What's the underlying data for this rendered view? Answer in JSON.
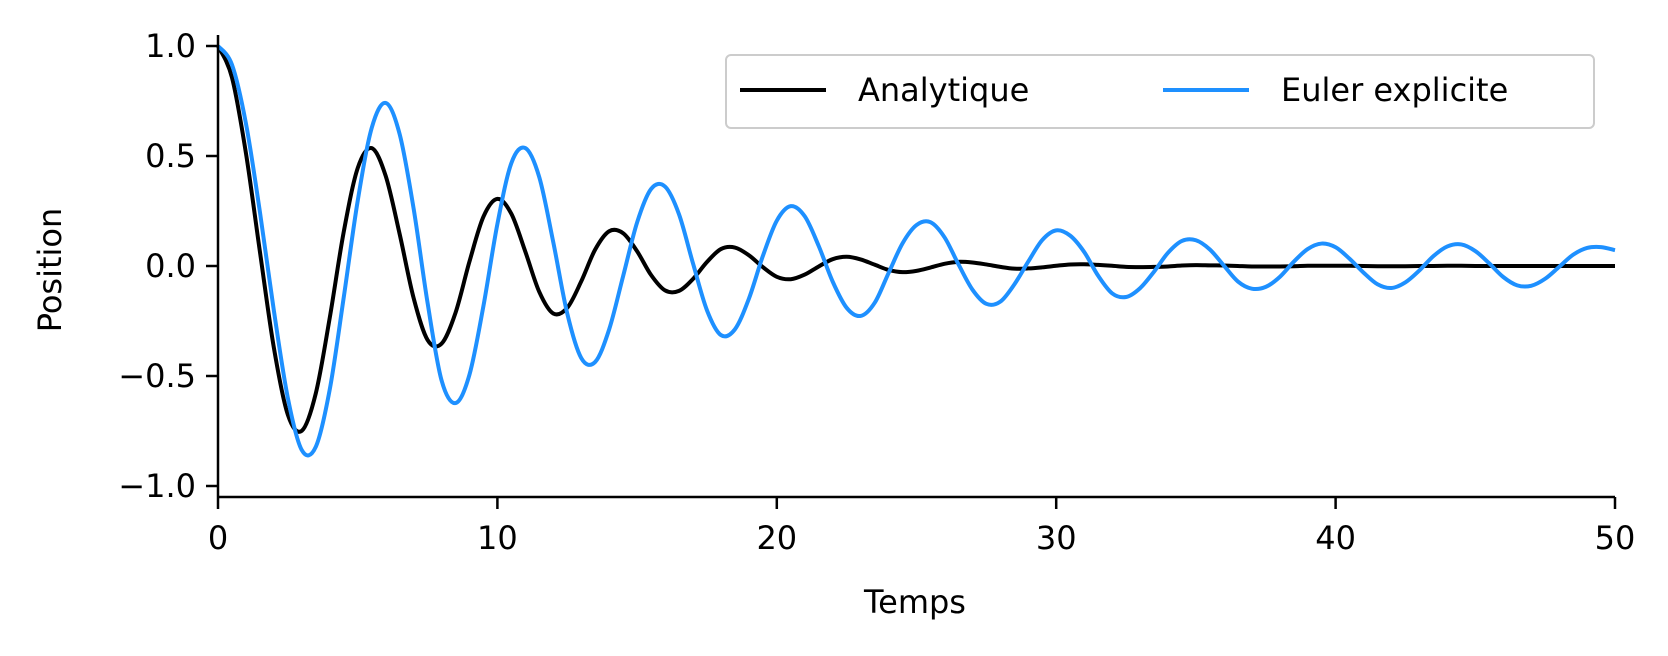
{
  "chart_data": {
    "type": "line",
    "title": "",
    "xlabel": "Temps",
    "ylabel": "Position",
    "xlim": [
      0,
      50
    ],
    "ylim": [
      -1.05,
      1.05
    ],
    "xticks": [
      0,
      10,
      20,
      30,
      40,
      50
    ],
    "xtick_labels": [
      "0",
      "10",
      "20",
      "30",
      "40",
      "50"
    ],
    "yticks": [
      -1.0,
      -0.5,
      0.0,
      0.5,
      1.0
    ],
    "ytick_labels": [
      "−1.0",
      "−0.5",
      "0.0",
      "0.5",
      "1.0"
    ],
    "grid": false,
    "legend_position": "top-right",
    "legend_columns": 2,
    "series": [
      {
        "name": "Analytique",
        "color": "#000000",
        "x": [
          0,
          0.5,
          1,
          1.5,
          2,
          2.5,
          3,
          3.5,
          4,
          4.5,
          5,
          5.5,
          6,
          6.5,
          7,
          7.5,
          8,
          8.5,
          9,
          9.5,
          10,
          10.5,
          11,
          11.5,
          12,
          12.5,
          13,
          13.5,
          14,
          14.5,
          15,
          15.5,
          16,
          16.5,
          17,
          17.5,
          18,
          18.5,
          19,
          19.5,
          20,
          20.5,
          21,
          21.5,
          22,
          22.5,
          23,
          23.5,
          24,
          24.5,
          25,
          25.5,
          26,
          26.5,
          27,
          27.5,
          28,
          28.5,
          29,
          29.5,
          30,
          30.5,
          31,
          31.5,
          32,
          32.5,
          33,
          33.5,
          34,
          34.5,
          35,
          35.5,
          36,
          36.5,
          37,
          37.5,
          38,
          38.5,
          39,
          39.5,
          40,
          40.5,
          41,
          41.5,
          42,
          42.5,
          43,
          43.5,
          44,
          44.5,
          45,
          45.5,
          46,
          46.5,
          47,
          47.5,
          48,
          48.5,
          49,
          49.5,
          50
        ],
        "y": [
          1.0,
          0.857,
          0.513,
          0.065,
          -0.372,
          -0.676,
          -0.749,
          -0.579,
          -0.235,
          0.155,
          0.445,
          0.536,
          0.41,
          0.146,
          -0.145,
          -0.336,
          -0.353,
          -0.213,
          0.02,
          0.224,
          0.305,
          0.237,
          0.065,
          -0.118,
          -0.216,
          -0.19,
          -0.07,
          0.075,
          0.158,
          0.149,
          0.067,
          -0.041,
          -0.111,
          -0.113,
          -0.059,
          0.018,
          0.077,
          0.084,
          0.049,
          -0.005,
          -0.049,
          -0.06,
          -0.039,
          -0.002,
          0.031,
          0.042,
          0.03,
          0.006,
          -0.018,
          -0.028,
          -0.022,
          -0.007,
          0.01,
          0.019,
          0.016,
          0.007,
          -0.004,
          -0.012,
          -0.011,
          -0.006,
          0.001,
          0.007,
          0.008,
          0.005,
          0.001,
          -0.004,
          -0.005,
          -0.004,
          -0.002,
          0.002,
          0.004,
          0.003,
          0.002,
          0.0,
          -0.002,
          -0.002,
          -0.002,
          -0.001,
          0.001,
          0.001,
          0.001,
          0.001,
          0.0,
          -0.001,
          -0.001,
          -0.001,
          0.0,
          0.0,
          0.001,
          0.001,
          0.0,
          0.0,
          0.0,
          0.0,
          0.0,
          0.0,
          0.0,
          0.0,
          0.0,
          0.0,
          0.0
        ]
      },
      {
        "name": "Euler explicite",
        "color": "#1E90FF",
        "x": [
          0,
          0.5,
          1,
          1.5,
          2,
          2.5,
          3,
          3.5,
          4,
          4.5,
          5,
          5.5,
          6,
          6.5,
          7,
          7.5,
          8,
          8.5,
          9,
          9.5,
          10,
          10.5,
          11,
          11.5,
          12,
          12.5,
          13,
          13.5,
          14,
          14.5,
          15,
          15.5,
          16,
          16.5,
          17,
          17.5,
          18,
          18.5,
          19,
          19.5,
          20,
          20.5,
          21,
          21.5,
          22,
          22.5,
          23,
          23.5,
          24,
          24.5,
          25,
          25.5,
          26,
          26.5,
          27,
          27.5,
          28,
          28.5,
          29,
          29.5,
          30,
          30.5,
          31,
          31.5,
          32,
          32.5,
          33,
          33.5,
          34,
          34.5,
          35,
          35.5,
          36,
          36.5,
          37,
          37.5,
          38,
          38.5,
          39,
          39.5,
          40,
          40.5,
          41,
          41.5,
          42,
          42.5,
          43,
          43.5,
          44,
          44.5,
          45,
          45.5,
          46,
          46.5,
          47,
          47.5,
          48,
          48.5,
          49,
          49.5,
          50
        ],
        "y": [
          1.0,
          0.915,
          0.648,
          0.246,
          -0.203,
          -0.6,
          -0.837,
          -0.822,
          -0.561,
          -0.143,
          0.296,
          0.627,
          0.741,
          0.6,
          0.262,
          -0.167,
          -0.519,
          -0.623,
          -0.494,
          -0.182,
          0.191,
          0.468,
          0.536,
          0.403,
          0.108,
          -0.216,
          -0.418,
          -0.436,
          -0.288,
          -0.046,
          0.198,
          0.35,
          0.361,
          0.235,
          0.012,
          -0.201,
          -0.314,
          -0.288,
          -0.149,
          0.045,
          0.206,
          0.272,
          0.226,
          0.091,
          -0.071,
          -0.19,
          -0.227,
          -0.168,
          -0.032,
          0.103,
          0.186,
          0.199,
          0.131,
          0.008,
          -0.107,
          -0.172,
          -0.162,
          -0.084,
          0.02,
          0.118,
          0.162,
          0.138,
          0.064,
          -0.044,
          -0.124,
          -0.141,
          -0.101,
          -0.026,
          0.06,
          0.114,
          0.117,
          0.075,
          0.002,
          -0.07,
          -0.103,
          -0.095,
          -0.05,
          0.019,
          0.077,
          0.102,
          0.085,
          0.033,
          -0.03,
          -0.083,
          -0.1,
          -0.074,
          -0.02,
          0.045,
          0.089,
          0.098,
          0.068,
          0.012,
          -0.05,
          -0.088,
          -0.09,
          -0.058,
          -0.004,
          0.051,
          0.082,
          0.086,
          0.072
        ]
      }
    ]
  }
}
